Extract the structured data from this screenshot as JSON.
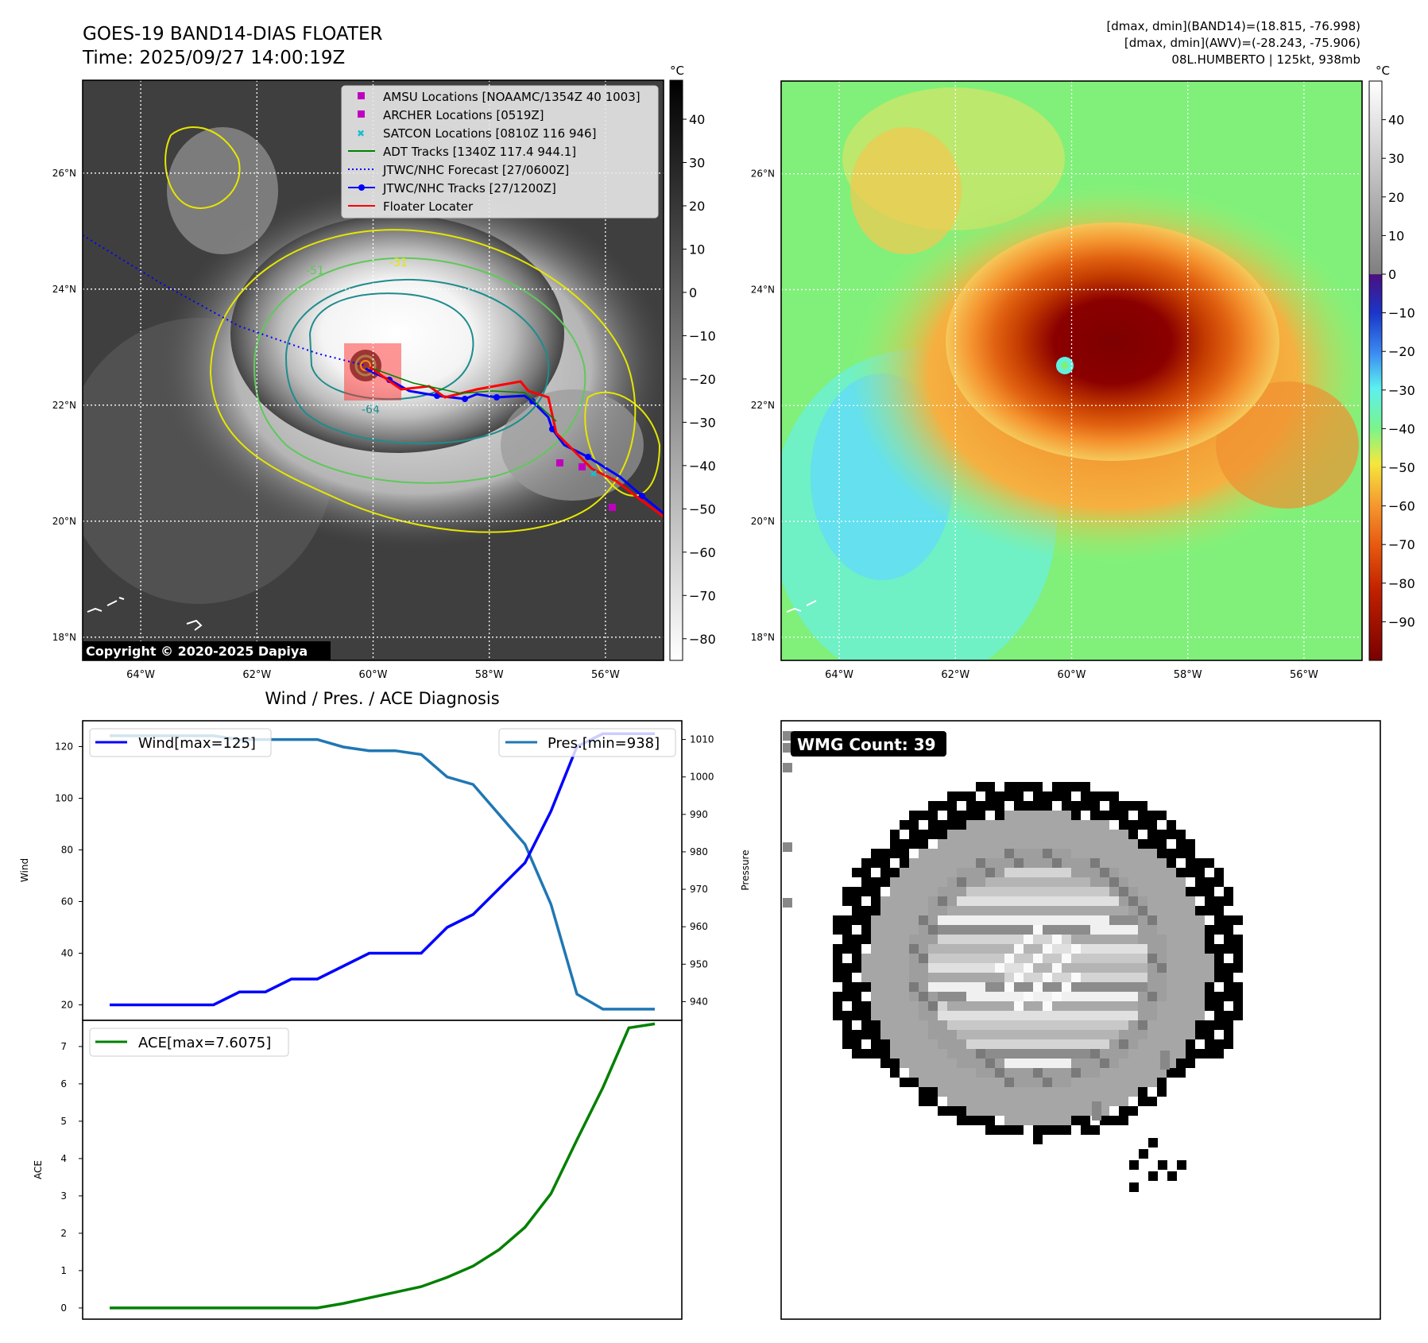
{
  "header": {
    "title_line1": "GOES-19 BAND14-DIAS FLOATER",
    "title_line2": "Time: 2025/09/27 14:00:19Z",
    "info_line1": "[dmax, dmin](BAND14)=(18.815, -76.998)",
    "info_line2": "[dmax, dmin](AWV)=(-28.243, -75.906)",
    "info_line3": "08L.HUMBERTO | 125kt, 938mb"
  },
  "map_axes": {
    "lon_ticks": [
      "64°W",
      "62°W",
      "60°W",
      "58°W",
      "56°W"
    ],
    "lon_values": [
      -64,
      -62,
      -60,
      -58,
      -56
    ],
    "lat_ticks": [
      "26°N",
      "24°N",
      "22°N",
      "20°N",
      "18°N"
    ],
    "lat_values": [
      26,
      24,
      22,
      20,
      18
    ],
    "lon_range": [
      -65,
      -55
    ],
    "lat_range": [
      17.6,
      27.6
    ]
  },
  "colorbar_left": {
    "unit": "°C",
    "ticks": [
      "40",
      "30",
      "20",
      "10",
      "0",
      "−10",
      "−20",
      "−30",
      "−40",
      "−50",
      "−60",
      "−70",
      "−80"
    ],
    "values": [
      40,
      30,
      20,
      10,
      0,
      -10,
      -20,
      -30,
      -40,
      -50,
      -60,
      -70,
      -80
    ],
    "range": [
      -85,
      49
    ]
  },
  "colorbar_right": {
    "unit": "°C",
    "ticks": [
      "40",
      "30",
      "20",
      "10",
      "0",
      "−10",
      "−20",
      "−30",
      "−40",
      "−50",
      "−60",
      "−70",
      "−80",
      "−90"
    ],
    "values": [
      40,
      30,
      20,
      10,
      0,
      -10,
      -20,
      -30,
      -40,
      -50,
      -60,
      -70,
      -80,
      -90
    ],
    "range": [
      -100,
      50
    ]
  },
  "legend": {
    "amsu": "AMSU Locations [NOAAMC/1354Z 40 1003]",
    "archer": "ARCHER Locations [0519Z]",
    "satcon": "SATCON Locations [0810Z 116 946]",
    "adt": "ADT Tracks [1340Z 117.4 944.1]",
    "forecast": "JTWC/NHC Forecast [27/0600Z]",
    "tracks": "JTWC/NHC Tracks [27/1200Z]",
    "floater": "Floater Locater"
  },
  "colors": {
    "amsu": "#bf00bf",
    "archer": "#bf00bf",
    "satcon": "#17becf",
    "adt": "#008000",
    "forecast": "#0000ff",
    "tracks": "#0000ff",
    "floater": "#ff0000",
    "wind": "#0000ff",
    "pressure": "#1f77b4",
    "ace": "#008000"
  },
  "contour_labels": [
    "-31",
    "-51",
    "-64"
  ],
  "copyright": "Copyright © 2020-2025 Dapiya",
  "diagnosis": {
    "title": "Wind / Pres. / ACE Diagnosis",
    "wind_axis_label": "Wind",
    "pressure_axis_label": "Pressure",
    "ace_axis_label": "ACE",
    "wind_ticks": [
      20,
      40,
      60,
      80,
      100,
      120
    ],
    "pressure_ticks": [
      940,
      950,
      960,
      970,
      980,
      990,
      1000,
      1010
    ],
    "ace_ticks": [
      0,
      1,
      2,
      3,
      4,
      5,
      6,
      7
    ]
  },
  "wmg": {
    "label": "WMG Count: 39"
  },
  "chart_data": [
    {
      "type": "line",
      "title": "Wind / Pres. / ACE Diagnosis",
      "x": [
        0,
        1,
        2,
        3,
        4,
        5,
        6,
        7,
        8,
        9,
        10,
        11,
        12,
        13,
        14,
        15,
        16,
        17,
        18,
        19,
        20,
        21
      ],
      "series": [
        {
          "name": "Wind[max=125]",
          "axis": "left",
          "values": [
            20,
            20,
            20,
            20,
            20,
            25,
            25,
            30,
            30,
            35,
            40,
            40,
            40,
            50,
            55,
            65,
            75,
            95,
            120,
            125,
            125,
            125
          ]
        },
        {
          "name": "Pres.[min=938]",
          "axis": "right",
          "values": [
            1011,
            1011,
            1011,
            1011,
            1011,
            1010,
            1010,
            1010,
            1010,
            1008,
            1007,
            1007,
            1006,
            1000,
            998,
            990,
            982,
            966,
            942,
            938,
            938,
            938
          ]
        }
      ],
      "ylabel": "Wind",
      "y2label": "Pressure",
      "ylim": [
        14,
        130
      ],
      "y2lim": [
        935,
        1015
      ]
    },
    {
      "type": "line",
      "x": [
        0,
        1,
        2,
        3,
        4,
        5,
        6,
        7,
        8,
        9,
        10,
        11,
        12,
        13,
        14,
        15,
        16,
        17,
        18,
        19,
        20,
        21
      ],
      "series": [
        {
          "name": "ACE[max=7.6075]",
          "values": [
            0,
            0,
            0,
            0,
            0,
            0,
            0,
            0,
            0,
            0.12,
            0.27,
            0.42,
            0.57,
            0.82,
            1.12,
            1.56,
            2.16,
            3.06,
            4.5,
            5.9,
            7.5,
            7.6075
          ]
        }
      ],
      "ylabel": "ACE",
      "ylim": [
        -0.3,
        7.7
      ]
    }
  ]
}
